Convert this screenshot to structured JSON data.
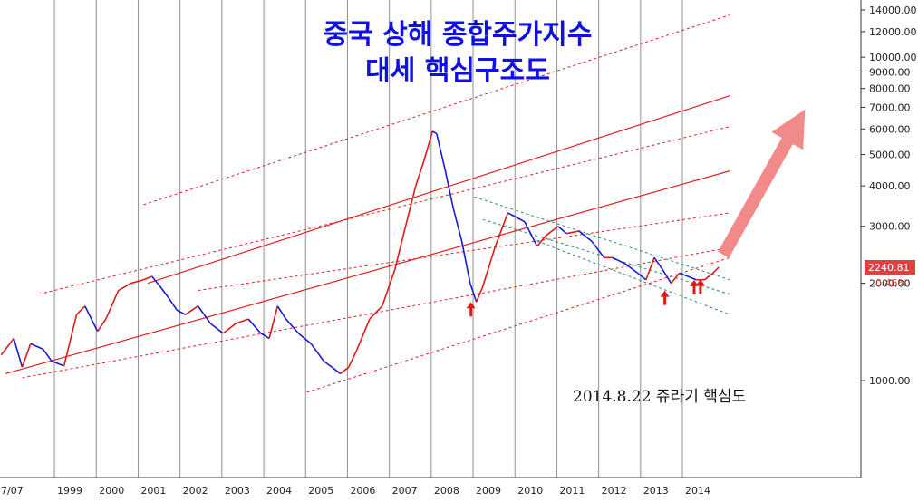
{
  "chart_data": {
    "type": "line",
    "title_line1": "중국 상해 종합주가지수",
    "title_line2": "대세 핵심구조도",
    "annotation": "2014.8.22 쥬라기 핵심도",
    "x_tick_labels": [
      "7/07",
      "1999",
      "2000",
      "2001",
      "2002",
      "2003",
      "2004",
      "2005",
      "2006",
      "2007",
      "2008",
      "2009",
      "2010",
      "2011",
      "2012",
      "2013",
      "2014"
    ],
    "y_tick_labels": [
      "14000.00",
      "12000.00",
      "10000.00",
      "9000.00",
      "8000.00",
      "7000.00",
      "6000.00",
      "5000.00",
      "4000.00",
      "3000.00",
      "2000.00",
      "1000.00"
    ],
    "y_ticks": [
      14000,
      12000,
      10000,
      9000,
      8000,
      7000,
      6000,
      5000,
      4000,
      3000,
      2000,
      1000
    ],
    "y_scale": "log",
    "ylim": [
      570,
      15500
    ],
    "last_value_label": "2240.81",
    "last_change_label": "0.46%",
    "series": [
      {
        "x": [
          1997.5,
          1997.8,
          1998.0,
          1998.2,
          1998.5,
          1998.7,
          1999.0,
          1999.3,
          1999.5,
          1999.8,
          2000.0,
          2000.3,
          2000.6,
          2000.9,
          2001.1,
          2001.3,
          2001.5,
          2001.7,
          2001.9,
          2002.2,
          2002.5,
          2002.8,
          2003.1,
          2003.4,
          2003.7,
          2003.9,
          2004.1,
          2004.3,
          2004.6,
          2004.9,
          2005.2,
          2005.4,
          2005.6,
          2005.8,
          2006.0,
          2006.3,
          2006.6,
          2006.9,
          2007.1,
          2007.4,
          2007.6,
          2007.8,
          2007.9,
          2008.1,
          2008.3,
          2008.5,
          2008.7,
          2008.85,
          2009.0,
          2009.3,
          2009.6,
          2009.8,
          2010.0,
          2010.3,
          2010.5,
          2010.8,
          2011.0,
          2011.3,
          2011.6,
          2011.9,
          2012.1,
          2012.4,
          2012.7,
          2012.9,
          2013.1,
          2013.3,
          2013.5,
          2013.7,
          2013.9,
          2014.1,
          2014.3,
          2014.5,
          2014.64
        ],
        "values": [
          1200,
          1350,
          1100,
          1300,
          1250,
          1150,
          1110,
          1600,
          1700,
          1420,
          1550,
          1900,
          2000,
          2050,
          2100,
          1950,
          1800,
          1650,
          1600,
          1700,
          1500,
          1400,
          1500,
          1550,
          1400,
          1350,
          1700,
          1550,
          1400,
          1300,
          1150,
          1100,
          1050,
          1100,
          1250,
          1550,
          1700,
          2200,
          2800,
          4000,
          4800,
          5900,
          5800,
          4500,
          3400,
          2700,
          2000,
          1750,
          1950,
          2600,
          3300,
          3200,
          3100,
          2600,
          2800,
          3000,
          2850,
          2900,
          2700,
          2400,
          2400,
          2300,
          2150,
          2050,
          2400,
          2200,
          2000,
          2150,
          2100,
          2050,
          2050,
          2150,
          2240.81
        ]
      }
    ],
    "channel_lines_solid": [
      {
        "x": [
          2001.0,
          2014.9
        ],
        "values": [
          2000,
          7600
        ]
      },
      {
        "x": [
          1997.6,
          2014.9
        ],
        "values": [
          1050,
          4450
        ]
      }
    ],
    "channel_lines_dashed": [
      {
        "x": [
          2000.9,
          2014.9
        ],
        "values": [
          3500,
          13500
        ]
      },
      {
        "x": [
          1998.4,
          2014.9
        ],
        "values": [
          1850,
          6100
        ]
      },
      {
        "x": [
          2002.2,
          2014.9
        ],
        "values": [
          1900,
          3300
        ]
      },
      {
        "x": [
          1998.0,
          2014.9
        ],
        "values": [
          1020,
          2580
        ]
      },
      {
        "x": [
          2004.8,
          2014.9
        ],
        "values": [
          920,
          2400
        ]
      }
    ],
    "downtrend_lines_dashed": [
      {
        "x": [
          2008.8,
          2014.9
        ],
        "values": [
          3700,
          2050
        ]
      },
      {
        "x": [
          2009.0,
          2014.9
        ],
        "values": [
          3150,
          1850
        ]
      },
      {
        "x": [
          2010.3,
          2014.9
        ],
        "values": [
          2700,
          1600
        ]
      }
    ],
    "up_markers": [
      {
        "x": 2008.72,
        "value": 1640
      },
      {
        "x": 2013.35,
        "value": 1780
      },
      {
        "x": 2014.05,
        "value": 1920
      },
      {
        "x": 2014.2,
        "value": 1930
      }
    ],
    "forecast_arrow": {
      "x": [
        2014.75,
        2016.7
      ],
      "values": [
        2450,
        6900
      ]
    },
    "colors": {
      "price": "#1a1ad0",
      "price_up": "#e01818",
      "channel": "#e02020",
      "downtrend": "#2a8a7a",
      "forecast_arrow": "#f28a8a",
      "grid": "#909090",
      "title": "#1010e0",
      "last_label_bg": "#e04040"
    },
    "grid": true
  }
}
